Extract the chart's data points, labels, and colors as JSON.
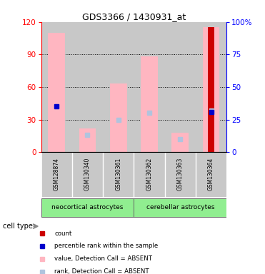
{
  "title": "GDS3366 / 1430931_at",
  "samples": [
    "GSM128874",
    "GSM130340",
    "GSM130361",
    "GSM130362",
    "GSM130363",
    "GSM130364"
  ],
  "group1_name": "neocortical astrocytes",
  "group2_name": "cerebellar astrocytes",
  "group_color": "#90EE90",
  "ylim_left": [
    0,
    120
  ],
  "ylim_right": [
    0,
    100
  ],
  "yticks_left": [
    0,
    30,
    60,
    90,
    120
  ],
  "yticks_right": [
    0,
    25,
    50,
    75,
    100
  ],
  "yticklabels_right": [
    "0",
    "25",
    "50",
    "75",
    "100%"
  ],
  "pink_bar_heights": [
    110,
    22,
    63,
    88,
    18,
    115
  ],
  "rank_absent_values": [
    35,
    13,
    25,
    30,
    10,
    32
  ],
  "percentile_rank_values": [
    35,
    null,
    null,
    null,
    null,
    31
  ],
  "count_values": [
    null,
    null,
    null,
    null,
    null,
    115
  ],
  "pink_bar_color": "#FFB6C1",
  "rank_absent_color": "#B0C4DE",
  "percentile_rank_color": "#0000CC",
  "count_color": "#CC0000",
  "background_gray": "#C8C8C8",
  "cell_type_label": "cell type",
  "legend_labels": [
    "count",
    "percentile rank within the sample",
    "value, Detection Call = ABSENT",
    "rank, Detection Call = ABSENT"
  ],
  "legend_colors": [
    "#CC0000",
    "#0000CC",
    "#FFB6C1",
    "#B0C4DE"
  ]
}
